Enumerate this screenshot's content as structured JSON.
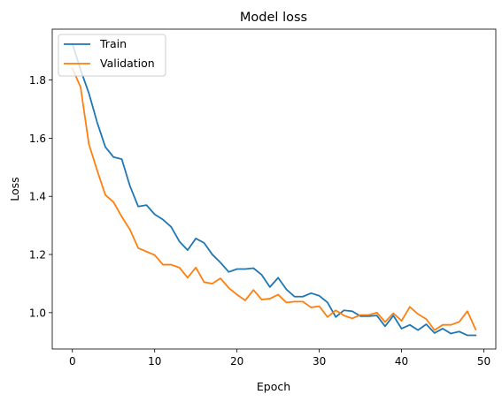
{
  "chart_data": {
    "type": "line",
    "title": "Model loss",
    "xlabel": "Epoch",
    "ylabel": "Loss",
    "xlim": [
      -2.45,
      51.45
    ],
    "ylim": [
      0.875,
      1.975
    ],
    "xticks": [
      0,
      10,
      20,
      30,
      40,
      50
    ],
    "yticks": [
      1.0,
      1.2,
      1.4,
      1.6,
      1.8
    ],
    "ytick_labels": [
      "1.0",
      "1.2",
      "1.4",
      "1.6",
      "1.8"
    ],
    "grid": false,
    "legend_position": "top-left",
    "x": [
      0,
      1,
      2,
      3,
      4,
      5,
      6,
      7,
      8,
      9,
      10,
      11,
      12,
      13,
      14,
      15,
      16,
      17,
      18,
      19,
      20,
      21,
      22,
      23,
      24,
      25,
      26,
      27,
      28,
      29,
      30,
      31,
      32,
      33,
      34,
      35,
      36,
      37,
      38,
      39,
      40,
      41,
      42,
      43,
      44,
      45,
      46,
      47,
      48,
      49
    ],
    "series": [
      {
        "name": "Train",
        "color": "#1f77b4",
        "values": [
          1.925,
          1.835,
          1.755,
          1.655,
          1.57,
          1.535,
          1.528,
          1.435,
          1.365,
          1.37,
          1.338,
          1.32,
          1.295,
          1.245,
          1.215,
          1.255,
          1.24,
          1.2,
          1.172,
          1.14,
          1.15,
          1.15,
          1.153,
          1.13,
          1.088,
          1.12,
          1.08,
          1.055,
          1.055,
          1.067,
          1.058,
          1.035,
          0.985,
          1.008,
          1.005,
          0.988,
          0.988,
          0.99,
          0.953,
          0.99,
          0.945,
          0.958,
          0.94,
          0.96,
          0.93,
          0.945,
          0.928,
          0.935,
          0.922,
          0.922
        ]
      },
      {
        "name": "Validation",
        "color": "#ff7f0e",
        "values": [
          1.84,
          1.775,
          1.58,
          1.49,
          1.405,
          1.38,
          1.33,
          1.285,
          1.222,
          1.21,
          1.198,
          1.165,
          1.165,
          1.155,
          1.12,
          1.155,
          1.105,
          1.1,
          1.118,
          1.085,
          1.062,
          1.042,
          1.078,
          1.045,
          1.048,
          1.062,
          1.035,
          1.038,
          1.038,
          1.018,
          1.022,
          0.985,
          1.008,
          0.99,
          0.98,
          0.992,
          0.992,
          1.0,
          0.968,
          0.998,
          0.972,
          1.02,
          0.995,
          0.978,
          0.94,
          0.958,
          0.958,
          0.968,
          1.005,
          0.942
        ]
      }
    ]
  }
}
